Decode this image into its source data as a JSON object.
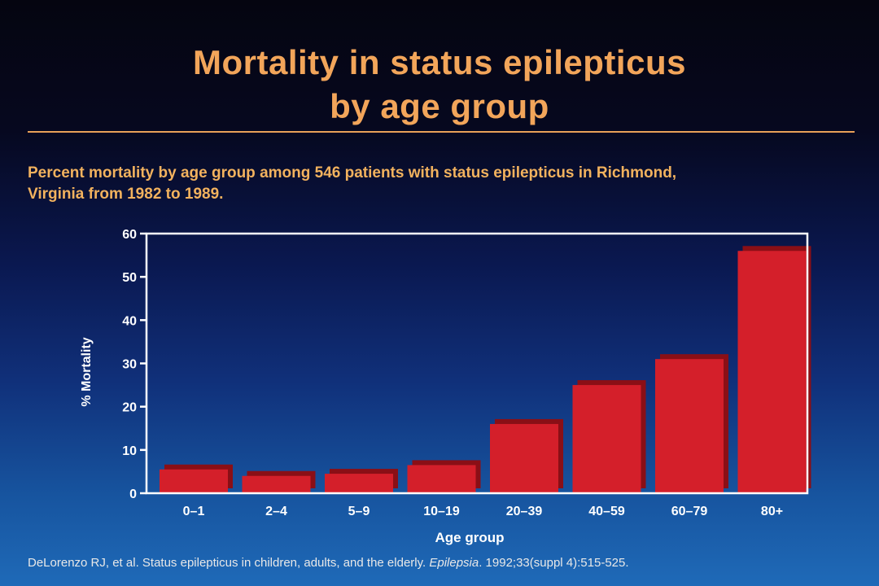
{
  "slide": {
    "title_line1": "Mortality in status epilepticus",
    "title_line2": "by age group",
    "subtitle_line1": "Percent mortality by age group among 546 patients with status epilepticus in Richmond,",
    "subtitle_line2": "Virginia from 1982 to 1989.",
    "citation_pre": "DeLorenzo RJ, et al. Status epilepticus in children, adults, and the elderly. ",
    "citation_journal": "Epilepsia",
    "citation_post": ". 1992;33(suppl 4):515-525."
  },
  "colors": {
    "title": "#f2a55a",
    "bar_front": "#d41f2a",
    "bar_shadow": "#8a0f16",
    "axis": "#ffffff"
  },
  "chart_data": {
    "type": "bar",
    "categories": [
      "0–1",
      "2–4",
      "5–9",
      "10–19",
      "20–39",
      "40–59",
      "60–79",
      "80+"
    ],
    "values": [
      5.5,
      4,
      4.5,
      6.5,
      16,
      25,
      31,
      56
    ],
    "xlabel": "Age group",
    "ylabel": "% Mortality",
    "ylim": [
      0,
      60
    ],
    "yticks": [
      0,
      10,
      20,
      30,
      40,
      50,
      60
    ],
    "grid": false,
    "legend": "none"
  }
}
